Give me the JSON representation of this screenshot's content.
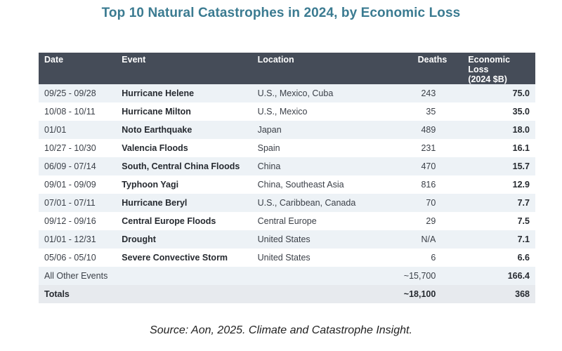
{
  "title": "Top 10 Natural Catastrophes in 2024, by Economic Loss",
  "table": {
    "headers": {
      "date": "Date",
      "event": "Event",
      "location": "Location",
      "deaths": "Deaths",
      "loss_line1": "Economic Loss",
      "loss_line2": "(2024 $B)"
    },
    "rows": [
      {
        "date": "09/25 - 09/28",
        "event": "Hurricane Helene",
        "location": "U.S., Mexico, Cuba",
        "deaths": "243",
        "loss": "75.0"
      },
      {
        "date": "10/08 - 10/11",
        "event": "Hurricane Milton",
        "location": "U.S., Mexico",
        "deaths": "35",
        "loss": "35.0"
      },
      {
        "date": "01/01",
        "event": "Noto Earthquake",
        "location": "Japan",
        "deaths": "489",
        "loss": "18.0"
      },
      {
        "date": "10/27 - 10/30",
        "event": "Valencia Floods",
        "location": "Spain",
        "deaths": "231",
        "loss": "16.1"
      },
      {
        "date": "06/09 - 07/14",
        "event": "South, Central China Floods",
        "location": "China",
        "deaths": "470",
        "loss": "15.7"
      },
      {
        "date": "09/01 - 09/09",
        "event": "Typhoon Yagi",
        "location": "China, Southeast Asia",
        "deaths": "816",
        "loss": "12.9"
      },
      {
        "date": "07/01 - 07/11",
        "event": "Hurricane Beryl",
        "location": "U.S., Caribbean, Canada",
        "deaths": "70",
        "loss": "7.7"
      },
      {
        "date": "09/12 - 09/16",
        "event": "Central Europe Floods",
        "location": "Central Europe",
        "deaths": "29",
        "loss": "7.5"
      },
      {
        "date": "01/01 - 12/31",
        "event": "Drought",
        "location": "United States",
        "deaths": "N/A",
        "loss": "7.1"
      },
      {
        "date": "05/06 - 05/10",
        "event": "Severe Convective Storm",
        "location": "United States",
        "deaths": "6",
        "loss": "6.6"
      }
    ],
    "other": {
      "label": "All Other Events",
      "deaths": "~15,700",
      "loss": "166.4"
    },
    "totals": {
      "label": "Totals",
      "deaths": "~18,100",
      "loss": "368"
    }
  },
  "source": "Source: Aon, 2025. Climate and Catastrophe Insight.",
  "colors": {
    "title": "#3b7b91",
    "header_bg": "#454c58",
    "stripe": "#edf2f6"
  }
}
